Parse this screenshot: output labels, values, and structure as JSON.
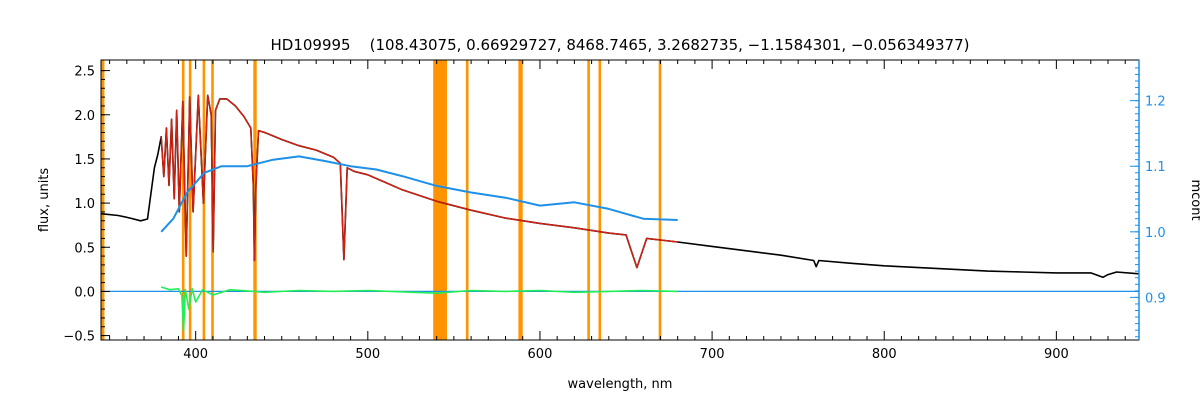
{
  "chart_data": {
    "type": "line",
    "title": "HD109995    (108.43075, 0.66929727, 8468.7465, 3.2682735, −1.1584301, −0.056349377)",
    "xlabel": "wavelength, nm",
    "ylabel": "flux, units",
    "y2label": "mcont",
    "xlim": [
      345,
      948
    ],
    "ylim": [
      -0.55,
      2.62
    ],
    "y2lim": [
      0.835,
      1.262
    ],
    "xticks": [
      400,
      500,
      600,
      700,
      800,
      900
    ],
    "yticks": [
      -0.5,
      0.0,
      0.5,
      1.0,
      1.5,
      2.0,
      2.5
    ],
    "y2ticks": [
      0.9,
      1.0,
      1.1,
      1.2
    ],
    "ytick_labels": [
      "−0.5",
      "0.0",
      "0.5",
      "1.0",
      "1.5",
      "2.0",
      "2.5"
    ],
    "y2tick_labels": [
      "0.9",
      "1.0",
      "1.1",
      "1.2"
    ],
    "grid": false,
    "colors": {
      "observed": "#000000",
      "model": "#d42010",
      "continuum": "#1e90e8",
      "residual": "#22ee55",
      "mask": "#ff9400",
      "right_axis": "#1e90e8"
    },
    "masked_regions": [
      [
        345,
        347
      ],
      [
        392,
        393.5
      ],
      [
        396,
        397.5
      ],
      [
        404,
        405.5
      ],
      [
        409,
        410.5
      ],
      [
        433.5,
        435.5
      ],
      [
        538,
        546
      ],
      [
        557,
        558.5
      ],
      [
        587.5,
        590
      ],
      [
        627.5,
        629
      ],
      [
        634,
        635.5
      ],
      [
        669,
        670.5
      ]
    ],
    "series": [
      {
        "role": "observed",
        "x": [
          345,
          355,
          362,
          368,
          372,
          376,
          378,
          380,
          381.5,
          383,
          384.5,
          386,
          387.5,
          389,
          390.5,
          392.5,
          394.5,
          396.5,
          398.5,
          401.5,
          404.5,
          407,
          409,
          410.2,
          411.5,
          414,
          418,
          423,
          428,
          432,
          433.5,
          434.1,
          435,
          436.5,
          440,
          450,
          460,
          470,
          480,
          484,
          486.1,
          488,
          492,
          500,
          520,
          540,
          560,
          580,
          600,
          620,
          640,
          650,
          656.3,
          662,
          680,
          700,
          720,
          740,
          759,
          760.5,
          762,
          780,
          800,
          820,
          840,
          860,
          880,
          900,
          920,
          927,
          930,
          935,
          948
        ],
        "y": [
          0.88,
          0.86,
          0.83,
          0.8,
          0.82,
          1.4,
          1.55,
          1.75,
          1.3,
          1.85,
          1.2,
          1.95,
          1.05,
          2.05,
          0.9,
          2.15,
          0.4,
          2.2,
          0.9,
          2.22,
          1.0,
          2.22,
          2.0,
          0.45,
          2.05,
          2.18,
          2.18,
          2.1,
          1.98,
          1.85,
          1.2,
          0.35,
          1.2,
          1.82,
          1.8,
          1.72,
          1.65,
          1.6,
          1.52,
          1.45,
          0.36,
          1.4,
          1.36,
          1.32,
          1.15,
          1.02,
          0.92,
          0.83,
          0.77,
          0.72,
          0.66,
          0.64,
          0.27,
          0.6,
          0.56,
          0.51,
          0.46,
          0.41,
          0.35,
          0.28,
          0.35,
          0.32,
          0.29,
          0.27,
          0.25,
          0.23,
          0.22,
          0.21,
          0.21,
          0.16,
          0.19,
          0.22,
          0.2
        ]
      },
      {
        "role": "model",
        "x": [
          380,
          381.5,
          383,
          384.5,
          386,
          387.5,
          389,
          390.5,
          392.5,
          394.5,
          396.5,
          398.5,
          401.5,
          404.5,
          407,
          409,
          410.2,
          411.5,
          414,
          418,
          423,
          428,
          432,
          433.5,
          434.1,
          435,
          436.5,
          440,
          450,
          460,
          470,
          480,
          484,
          486.1,
          488,
          492,
          500,
          520,
          540,
          560,
          580,
          600,
          620,
          640,
          650,
          656.3,
          662,
          680
        ],
        "y": [
          1.75,
          1.3,
          1.85,
          1.2,
          1.95,
          1.05,
          2.05,
          0.9,
          2.15,
          0.4,
          2.2,
          0.9,
          2.22,
          1.0,
          2.22,
          2.0,
          0.45,
          2.05,
          2.18,
          2.18,
          2.1,
          1.98,
          1.85,
          1.2,
          0.35,
          1.2,
          1.82,
          1.8,
          1.72,
          1.65,
          1.6,
          1.52,
          1.45,
          0.36,
          1.4,
          1.36,
          1.32,
          1.15,
          1.02,
          0.92,
          0.83,
          0.77,
          0.72,
          0.66,
          0.64,
          0.27,
          0.6,
          0.56
        ]
      },
      {
        "role": "continuum",
        "axis": "right",
        "x": [
          380,
          387,
          395,
          405,
          415,
          430,
          445,
          460,
          475,
          490,
          505,
          520,
          540,
          560,
          580,
          600,
          620,
          640,
          660,
          680
        ],
        "y": [
          1.0,
          1.02,
          1.06,
          1.09,
          1.1,
          1.1,
          1.11,
          1.115,
          1.108,
          1.1,
          1.095,
          1.085,
          1.07,
          1.06,
          1.052,
          1.04,
          1.045,
          1.035,
          1.02,
          1.018
        ]
      },
      {
        "role": "residual",
        "x": [
          380,
          385,
          390,
          392,
          393,
          394,
          396,
          398,
          400,
          404,
          410,
          420,
          440,
          460,
          480,
          500,
          540,
          560,
          580,
          600,
          620,
          640,
          660,
          680
        ],
        "y": [
          0.05,
          0.02,
          0.03,
          -0.05,
          -0.45,
          0.02,
          -0.2,
          0.03,
          -0.12,
          0.02,
          -0.04,
          0.02,
          -0.01,
          0.01,
          0.0,
          0.01,
          -0.02,
          0.01,
          0.0,
          0.01,
          -0.01,
          0.0,
          0.01,
          0.0
        ]
      },
      {
        "role": "zero-line",
        "x": [
          345,
          948
        ],
        "y": [
          0.0,
          0.0
        ]
      }
    ]
  }
}
